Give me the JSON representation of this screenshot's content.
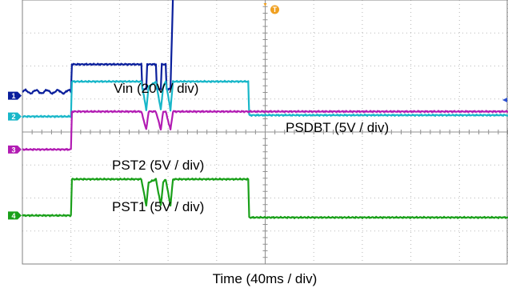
{
  "chart_data": {
    "type": "line",
    "title": "",
    "xlabel": "Time (40ms / div)",
    "ylabel": "",
    "grid": true,
    "divisions": {
      "x": 10,
      "y": 8
    },
    "trigger_marker": "T",
    "series": [
      {
        "name": "Vin (20V / div)",
        "channel": "1",
        "color": "#0a1f9c",
        "ref_level_div": 5.1,
        "x": [
          0,
          1.0,
          1.02,
          2.45,
          2.47,
          2.55,
          2.57,
          2.75,
          2.77,
          2.85,
          2.87,
          2.95,
          2.97,
          3.05,
          3.1,
          3.12,
          10
        ],
        "y": [
          0.12,
          0.12,
          0.95,
          0.95,
          0.2,
          0.2,
          0.95,
          0.95,
          0.2,
          0.2,
          0.95,
          0.95,
          0.2,
          0.2,
          3.0,
          3.1,
          3.1
        ]
      },
      {
        "name": "PSDBT (5V / div)",
        "channel": "",
        "color": "#0a1f9c",
        "ref_level_div": 5.1,
        "x": [],
        "y": []
      },
      {
        "name": "PST2 (5V / div)",
        "channel": "2",
        "color": "#19b7c9",
        "ref_level_div": 4.47,
        "x": [
          0,
          1.0,
          1.02,
          2.45,
          2.55,
          2.6,
          2.75,
          2.85,
          2.9,
          2.95,
          3.05,
          3.1,
          4.65,
          4.67,
          10
        ],
        "y": [
          0,
          0,
          1.06,
          1.06,
          0.2,
          0.9,
          1.06,
          0.2,
          0.9,
          1.06,
          0.2,
          1.06,
          1.06,
          0.04,
          0.04
        ]
      },
      {
        "name": "",
        "channel": "3",
        "color": "#b21cb3",
        "ref_level_div": 3.47,
        "x": [
          0,
          1.0,
          1.02,
          2.45,
          2.55,
          2.6,
          2.75,
          2.85,
          2.9,
          2.95,
          3.05,
          3.1,
          10
        ],
        "y": [
          0,
          0,
          1.15,
          1.15,
          0.6,
          1.15,
          1.15,
          0.6,
          1.15,
          1.15,
          0.6,
          1.15,
          1.15
        ]
      },
      {
        "name": "PST1 (5V / div)",
        "channel": "4",
        "color": "#1aa01a",
        "ref_level_div": 1.47,
        "x": [
          0,
          1.0,
          1.02,
          2.45,
          2.55,
          2.6,
          2.75,
          2.85,
          2.9,
          2.95,
          3.05,
          3.1,
          4.65,
          4.67,
          10
        ],
        "y": [
          0,
          0,
          1.1,
          1.1,
          0.3,
          1.0,
          1.1,
          0.3,
          1.0,
          1.1,
          0.3,
          1.1,
          1.1,
          -0.06,
          -0.06
        ]
      }
    ]
  }
}
